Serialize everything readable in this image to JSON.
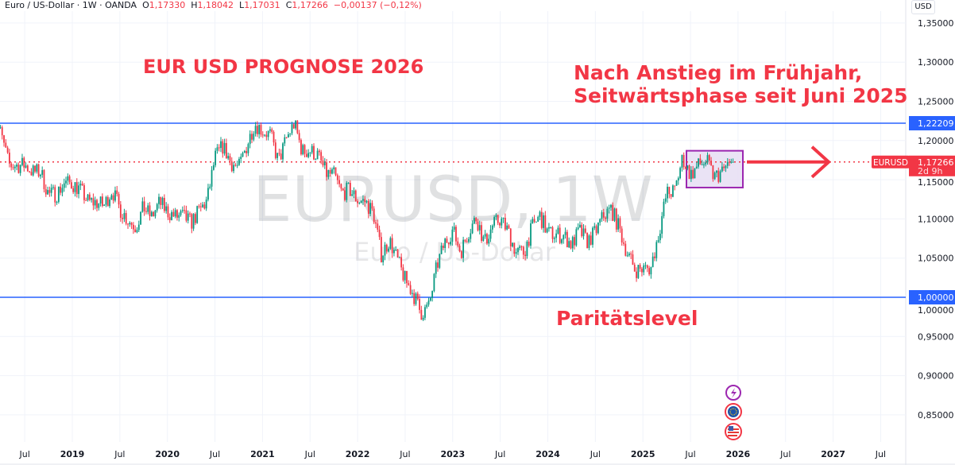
{
  "header": {
    "symbol": "Euro / US-Dollar · 1W · OANDA",
    "open_label": "O",
    "open": "1,17330",
    "high_label": "H",
    "high": "1,18042",
    "low_label": "L",
    "low": "1,17031",
    "close_label": "C",
    "close": "1,17266",
    "change": "−0,00137 (−0,12%)"
  },
  "currency_button": "USD",
  "watermark": {
    "title": "EURUSD, 1W",
    "subtitle": "Euro / US-Dollar"
  },
  "annotations": {
    "title": "EUR USD PROGNOSE 2026",
    "note_line1": "Nach Anstieg im Frühjahr,",
    "note_line2": "Seitwärtsphase seit Juni 2025",
    "parity": "Paritätslevel"
  },
  "price_labels": {
    "resistance": "1,22209",
    "support": "1,00000",
    "symbol_tag": "EURUSD",
    "last_price": "1,17266",
    "countdown": "2d 9h"
  },
  "side_icons": [
    "lightning-icon",
    "eu-flag-icon",
    "us-flag-icon"
  ],
  "colors": {
    "up": "#089981",
    "down": "#f23645",
    "levels": "#2962ff",
    "annotation": "#f23645",
    "box_border": "#9c27b0",
    "box_fill": "#e6def3"
  },
  "chart_data": {
    "type": "candlestick",
    "interval": "1W",
    "ylim": [
      0.83,
      1.36
    ],
    "y_ticks": [
      "1,35000",
      "1,30000",
      "1,25000",
      "1,20000",
      "1,15000",
      "1,10000",
      "1,05000",
      "1,00000",
      "0,95000",
      "0,90000",
      "0,85000"
    ],
    "y_tick_values": [
      1.35,
      1.3,
      1.25,
      1.2,
      1.15,
      1.1,
      1.05,
      1.0,
      0.95,
      0.9,
      0.85
    ],
    "x_ticks": [
      "Jul",
      "2019",
      "Jul",
      "2020",
      "Jul",
      "2021",
      "Jul",
      "2022",
      "Jul",
      "2023",
      "Jul",
      "2024",
      "Jul",
      "2025",
      "Jul",
      "2026",
      "Jul",
      "2027",
      "Jul"
    ],
    "x_tick_dates": [
      2018.5,
      2019,
      2019.5,
      2020,
      2020.5,
      2021,
      2021.5,
      2022,
      2022.5,
      2023,
      2023.5,
      2024,
      2024.5,
      2025,
      2025.5,
      2026,
      2026.5,
      2027,
      2027.5
    ],
    "grid": true,
    "start": "2018-03",
    "monthly_closes": [
      1.232,
      1.208,
      1.169,
      1.168,
      1.169,
      1.16,
      1.16,
      1.131,
      1.132,
      1.146,
      1.145,
      1.137,
      1.122,
      1.121,
      1.117,
      1.137,
      1.113,
      1.099,
      1.09,
      1.115,
      1.102,
      1.121,
      1.109,
      1.103,
      1.103,
      1.095,
      1.11,
      1.123,
      1.178,
      1.193,
      1.172,
      1.165,
      1.193,
      1.222,
      1.213,
      1.207,
      1.173,
      1.202,
      1.222,
      1.186,
      1.187,
      1.181,
      1.158,
      1.156,
      1.133,
      1.137,
      1.124,
      1.122,
      1.107,
      1.054,
      1.073,
      1.048,
      1.022,
      1.005,
      0.98,
      0.988,
      1.04,
      1.07,
      1.086,
      1.058,
      1.084,
      1.102,
      1.069,
      1.091,
      1.1,
      1.084,
      1.057,
      1.057,
      1.089,
      1.104,
      1.082,
      1.08,
      1.079,
      1.067,
      1.085,
      1.071,
      1.083,
      1.104,
      1.113,
      1.088,
      1.057,
      1.035,
      1.036,
      1.037,
      1.082,
      1.133,
      1.135,
      1.178,
      1.156,
      1.168,
      1.174,
      1.153,
      1.16,
      1.17266
    ],
    "horizontal_levels": [
      1.22209,
      1.0
    ],
    "last_price": 1.17266,
    "range_box": {
      "from": "2025-06",
      "to": "2025-12",
      "low": 1.14,
      "high": 1.19
    },
    "arrow": {
      "from": "2026-01",
      "to": "2026-09",
      "price": 1.17266
    }
  }
}
